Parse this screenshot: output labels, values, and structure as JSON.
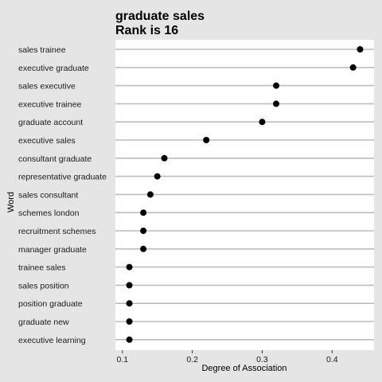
{
  "chart_data": {
    "type": "scatter",
    "title": "graduate sales",
    "subtitle": "Rank is 16",
    "xlabel": "Degree of Association",
    "ylabel": "Word",
    "xlim": [
      0.09,
      0.46
    ],
    "xticks": [
      0.1,
      0.2,
      0.3,
      0.4
    ],
    "xtick_labels": [
      "0.1",
      "0.2",
      "0.3",
      "0.4"
    ],
    "grid": "horizontal",
    "colors": {
      "background": "#e5e5e5",
      "panel": "#ffffff",
      "gridline": "#bdbdbd",
      "point": "#000000"
    },
    "categories": [
      "sales trainee",
      "executive graduate",
      "sales executive",
      "executive trainee",
      "graduate account",
      "executive sales",
      "consultant graduate",
      "representative graduate",
      "sales consultant",
      "schemes london",
      "recruitment schemes",
      "manager graduate",
      "trainee sales",
      "sales position",
      "position graduate",
      "graduate new",
      "executive learning"
    ],
    "values": [
      0.44,
      0.43,
      0.32,
      0.32,
      0.3,
      0.22,
      0.16,
      0.15,
      0.14,
      0.13,
      0.13,
      0.13,
      0.11,
      0.11,
      0.11,
      0.11,
      0.11
    ]
  }
}
